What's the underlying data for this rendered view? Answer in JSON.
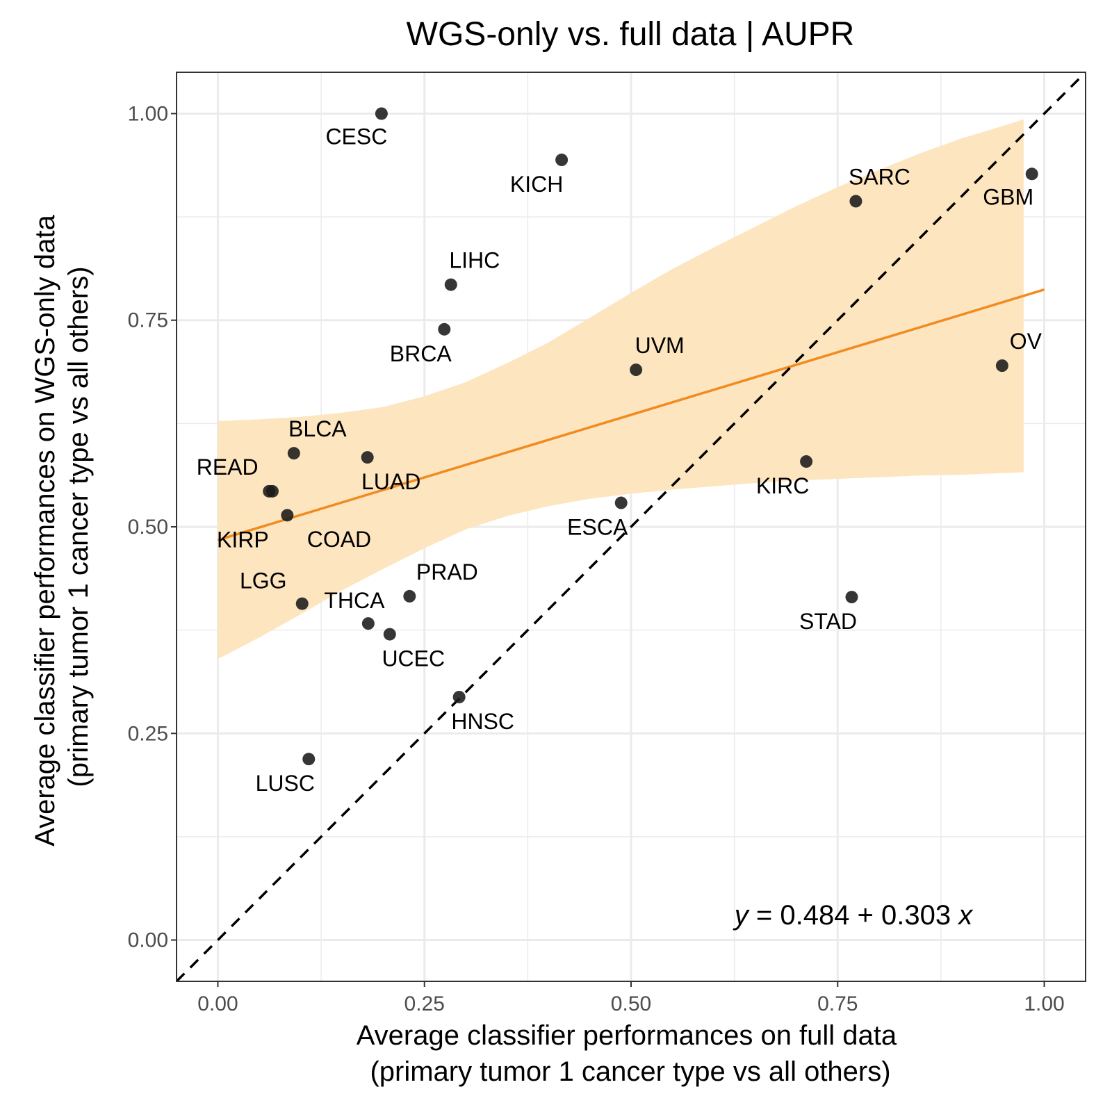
{
  "chart_data": {
    "type": "scatter",
    "title": "WGS-only vs. full data | AUPR",
    "xlabel": [
      "Average classifier performances on full data",
      "(primary tumor 1 cancer type vs all others)"
    ],
    "ylabel": [
      "Average classifier performances on WGS-only data",
      "(primary tumor 1 cancer type vs all others)"
    ],
    "xlim": [
      -0.05,
      1.05
    ],
    "ylim": [
      -0.05,
      1.05
    ],
    "x_ticks": [
      "0.00",
      "0.25",
      "0.50",
      "0.75",
      "1.00"
    ],
    "y_ticks": [
      "0.00",
      "0.25",
      "0.50",
      "0.75",
      "1.00"
    ],
    "grid": true,
    "points": [
      {
        "label": "CESC",
        "x": 0.198,
        "y": 1.0
      },
      {
        "label": "KICH",
        "x": 0.416,
        "y": 0.944
      },
      {
        "label": "SARC",
        "x": 0.772,
        "y": 0.894
      },
      {
        "label": "GBM",
        "x": 0.985,
        "y": 0.927
      },
      {
        "label": "LIHC",
        "x": 0.282,
        "y": 0.793
      },
      {
        "label": "BRCA",
        "x": 0.274,
        "y": 0.739
      },
      {
        "label": "UVM",
        "x": 0.506,
        "y": 0.69
      },
      {
        "label": "OV",
        "x": 0.949,
        "y": 0.695
      },
      {
        "label": "BLCA",
        "x": 0.092,
        "y": 0.589
      },
      {
        "label": "LUAD",
        "x": 0.181,
        "y": 0.584
      },
      {
        "label": "KIRC",
        "x": 0.712,
        "y": 0.579
      },
      {
        "label": "READ",
        "x": 0.062,
        "y": 0.543
      },
      {
        "label": "COAD",
        "x": 0.066,
        "y": 0.543
      },
      {
        "label": "ESCA",
        "x": 0.488,
        "y": 0.529
      },
      {
        "label": "KIRP",
        "x": 0.084,
        "y": 0.514
      },
      {
        "label": "PRAD",
        "x": 0.232,
        "y": 0.416
      },
      {
        "label": "STAD",
        "x": 0.767,
        "y": 0.415
      },
      {
        "label": "LGG",
        "x": 0.102,
        "y": 0.407
      },
      {
        "label": "THCA",
        "x": 0.182,
        "y": 0.383
      },
      {
        "label": "UCEC",
        "x": 0.208,
        "y": 0.37
      },
      {
        "label": "HNSC",
        "x": 0.292,
        "y": 0.294
      },
      {
        "label": "LUSC",
        "x": 0.11,
        "y": 0.219
      }
    ],
    "regression": {
      "equation_parts": [
        "y",
        " = 0.484 + 0.303 ",
        "x"
      ],
      "intercept": 0.484,
      "slope": 0.303,
      "x_range": [
        0.0,
        1.0
      ],
      "ci_x_range": [
        0.0,
        0.975
      ],
      "band_upper": [
        [
          0.0,
          0.628
        ],
        [
          0.05,
          0.63
        ],
        [
          0.1,
          0.633
        ],
        [
          0.15,
          0.638
        ],
        [
          0.2,
          0.645
        ],
        [
          0.25,
          0.658
        ],
        [
          0.3,
          0.675
        ],
        [
          0.35,
          0.698
        ],
        [
          0.4,
          0.723
        ],
        [
          0.45,
          0.753
        ],
        [
          0.5,
          0.783
        ],
        [
          0.55,
          0.812
        ],
        [
          0.6,
          0.838
        ],
        [
          0.65,
          0.863
        ],
        [
          0.7,
          0.888
        ],
        [
          0.75,
          0.911
        ],
        [
          0.8,
          0.932
        ],
        [
          0.85,
          0.952
        ],
        [
          0.9,
          0.97
        ],
        [
          0.95,
          0.985
        ],
        [
          0.975,
          0.993
        ]
      ],
      "band_lower": [
        [
          0.0,
          0.34
        ],
        [
          0.05,
          0.366
        ],
        [
          0.1,
          0.394
        ],
        [
          0.15,
          0.423
        ],
        [
          0.2,
          0.449
        ],
        [
          0.25,
          0.474
        ],
        [
          0.3,
          0.497
        ],
        [
          0.35,
          0.513
        ],
        [
          0.4,
          0.525
        ],
        [
          0.45,
          0.534
        ],
        [
          0.5,
          0.54
        ],
        [
          0.55,
          0.545
        ],
        [
          0.6,
          0.549
        ],
        [
          0.65,
          0.553
        ],
        [
          0.7,
          0.556
        ],
        [
          0.75,
          0.558
        ],
        [
          0.8,
          0.56
        ],
        [
          0.85,
          0.562
        ],
        [
          0.9,
          0.563
        ],
        [
          0.95,
          0.565
        ],
        [
          0.975,
          0.566
        ]
      ],
      "line_color": "#f28a1e",
      "band_color": "#fde5c0"
    },
    "identity_line": true,
    "colors": {
      "point": "#1a1a1a",
      "grid": "#ebebeb",
      "panel_border": "#333333",
      "identity_line": "#000000"
    }
  }
}
